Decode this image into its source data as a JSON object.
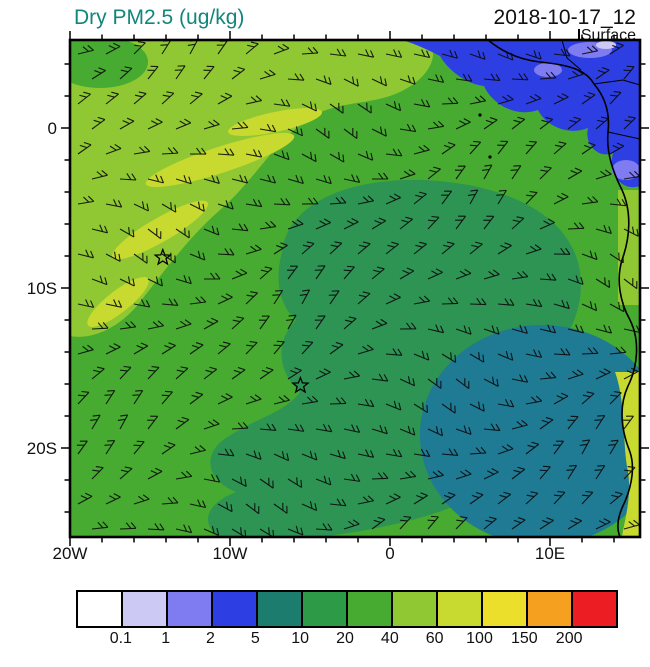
{
  "header": {
    "title": "Dry PM2.5 (ug/kg)",
    "title_color": "#11867b",
    "datetime": "2018-10-17_12",
    "level_label": "Surface"
  },
  "axes": {
    "lat": [
      {
        "label": "0",
        "value": 0
      },
      {
        "label": "10S",
        "value": -10
      },
      {
        "label": "20S",
        "value": -20
      }
    ],
    "lon": [
      {
        "label": "20W",
        "value": -20
      },
      {
        "label": "10W",
        "value": -10
      },
      {
        "label": "0",
        "value": 0
      },
      {
        "label": "10E",
        "value": 10
      }
    ],
    "minor_step_deg": 2
  },
  "colorbar": {
    "labels": [
      "0.1",
      "1",
      "2",
      "5",
      "10",
      "20",
      "40",
      "60",
      "100",
      "150",
      "200"
    ],
    "colors": [
      "#ffffff",
      "#cdc9f5",
      "#7f7bf1",
      "#2d3fe3",
      "#1c7c6e",
      "#2c9a47",
      "#46ab30",
      "#8fc832",
      "#c8d92f",
      "#ecdf2c",
      "#f5a01e",
      "#ec1d23"
    ]
  },
  "chart_data": {
    "type": "heatmap",
    "title": "Dry PM2.5 (ug/kg)",
    "timestamp": "2018-10-17_12",
    "level": "Surface",
    "units": "ug/kg",
    "projection": "lat-lon, eastern tropical Atlantic / west-central Africa",
    "lon_range": [
      -20,
      15.6
    ],
    "lat_range": [
      -25.6,
      5.5
    ],
    "contour_levels": [
      0.1,
      1,
      2,
      5,
      10,
      20,
      40,
      60,
      100,
      150,
      200
    ],
    "palette": [
      "#ffffff",
      "#cdc9f5",
      "#7f7bf1",
      "#2d3fe3",
      "#1c7c6e",
      "#2c9a47",
      "#46ab30",
      "#8fc832",
      "#c8d92f",
      "#ecdf2c",
      "#f5a01e",
      "#ec1d23"
    ],
    "overlay": "surface wind barbs across entire domain",
    "markers": [
      {
        "type": "star",
        "lon": -14.2,
        "lat": -8.1
      },
      {
        "type": "star",
        "lon": -5.6,
        "lat": -16.1
      }
    ],
    "field_summary": [
      {
        "region": "northwest quadrant of Atlantic (west of ~8W, 2N-14S)",
        "value_range_ug_kg": "40-100"
      },
      {
        "region": "most of the domain background",
        "value_range_ug_kg": "20-40"
      },
      {
        "region": "central South Atlantic rounded blob (~10W-6E, 4S-24S)",
        "value_range_ug_kg": "10-20"
      },
      {
        "region": "southeast offshore Angola (~2E-14E, 11S-24S)",
        "value_range_ug_kg": "5-10"
      },
      {
        "region": "northeast corner, Gulf of Guinea / Nigeria-Cameroon coast",
        "value_range_ug_kg": "1-5"
      },
      {
        "region": "Angola coastal land strip (lower right)",
        "value_range_ug_kg": "60-100"
      }
    ]
  }
}
